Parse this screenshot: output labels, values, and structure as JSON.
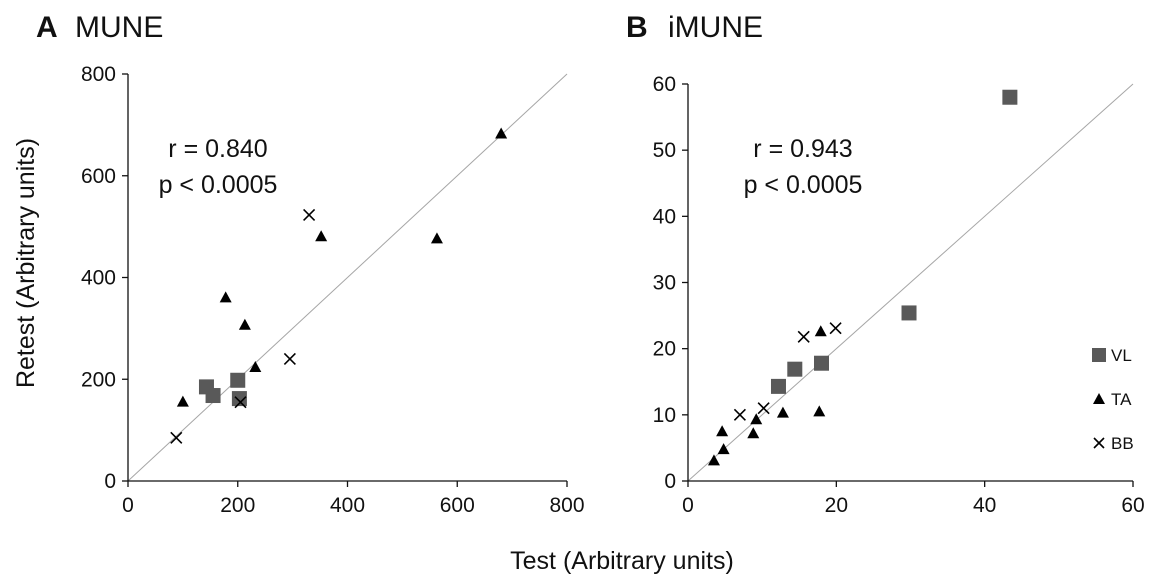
{
  "figure": {
    "xlabel": "Test (Arbitrary units)",
    "ylabel": "Retest (Arbitrary units)"
  },
  "colors": {
    "axis": "#111111",
    "identity_line": "#a6a6a6",
    "VL": "#595959",
    "TA": "#000000",
    "BB": "#000000"
  },
  "chart_data": [
    {
      "type": "scatter",
      "panel_letter": "A",
      "title": "MUNE",
      "xlim": [
        0,
        800
      ],
      "ylim": [
        0,
        800
      ],
      "xticks": [
        0,
        200,
        400,
        600,
        800
      ],
      "yticks": [
        0,
        200,
        400,
        600,
        800
      ],
      "stat_r": "r = 0.840",
      "stat_p": "p < 0.0005",
      "identity_line": true,
      "grid": false,
      "series": [
        {
          "name": "VL",
          "marker": "square",
          "points": [
            [
              143,
              185
            ],
            [
              155,
              168
            ],
            [
              200,
              198
            ],
            [
              203,
              162
            ]
          ]
        },
        {
          "name": "TA",
          "marker": "triangle",
          "points": [
            [
              100,
              157
            ],
            [
              178,
              362
            ],
            [
              213,
              308
            ],
            [
              232,
              225
            ],
            [
              352,
              482
            ],
            [
              563,
              478
            ],
            [
              680,
              684
            ]
          ]
        },
        {
          "name": "BB",
          "marker": "x",
          "points": [
            [
              88,
              85
            ],
            [
              205,
              155
            ],
            [
              295,
              240
            ],
            [
              330,
              523
            ]
          ]
        }
      ]
    },
    {
      "type": "scatter",
      "panel_letter": "B",
      "title": "iMUNE",
      "xlim": [
        0,
        60
      ],
      "ylim": [
        0,
        60
      ],
      "xticks": [
        0,
        20,
        40,
        60
      ],
      "yticks": [
        0,
        10,
        20,
        30,
        40,
        50,
        60
      ],
      "stat_r": "r = 0.943",
      "stat_p": "p < 0.0005",
      "identity_line": true,
      "grid": false,
      "legend_position": "right",
      "series": [
        {
          "name": "VL",
          "marker": "square",
          "points": [
            [
              12.2,
              14.3
            ],
            [
              14.4,
              16.9
            ],
            [
              18.0,
              17.8
            ],
            [
              29.8,
              25.4
            ],
            [
              43.4,
              58.0
            ]
          ]
        },
        {
          "name": "TA",
          "marker": "triangle",
          "points": [
            [
              3.5,
              3.2
            ],
            [
              4.8,
              4.9
            ],
            [
              4.6,
              7.6
            ],
            [
              8.8,
              7.3
            ],
            [
              9.2,
              9.4
            ],
            [
              12.8,
              10.4
            ],
            [
              17.7,
              10.6
            ],
            [
              17.9,
              22.7
            ]
          ]
        },
        {
          "name": "BB",
          "marker": "x",
          "points": [
            [
              7.0,
              10.0
            ],
            [
              10.2,
              11.0
            ],
            [
              15.6,
              21.8
            ],
            [
              19.9,
              23.1
            ]
          ]
        }
      ]
    }
  ]
}
